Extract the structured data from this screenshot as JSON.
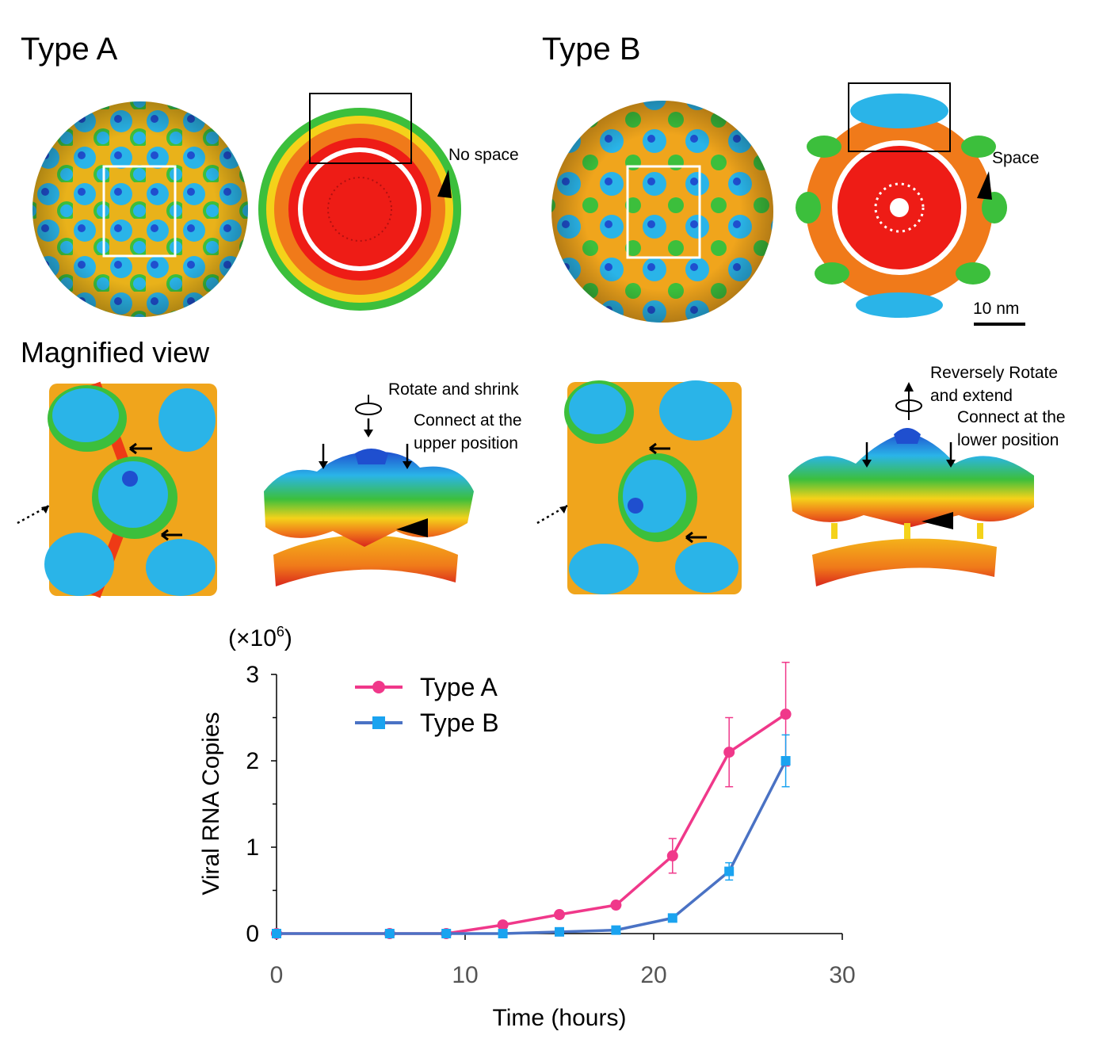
{
  "panels": {
    "type_a_title": "Type A",
    "type_b_title": "Type B",
    "magnified_title": "Magnified view",
    "no_space_label": "No space",
    "space_label": "Space",
    "scale_bar_label": "10 nm",
    "a_rotate_label": "Rotate and shrink",
    "a_connect_label": "Connect at the\nupper position",
    "b_rotate_label": "Reversely Rotate\nand extend",
    "b_connect_label": "Connect at the\nlower position"
  },
  "colors": {
    "type_a": "#f0388a",
    "type_b_marker": "#1aa3f0",
    "type_b_line": "#4a72c4",
    "shell_red": "#ee1c16",
    "shell_orange": "#f07a1a",
    "shell_yellow": "#f4d21a",
    "shell_green": "#3cbf3c",
    "shell_cyan": "#2ab4e8",
    "shell_blue": "#1f4fcf"
  },
  "chart_data": {
    "type": "line",
    "xlabel": "Time (hours)",
    "ylabel": "Viral RNA Copies",
    "y_multiplier_base": "(×10",
    "y_multiplier_exp": "6",
    "y_multiplier_close": ")",
    "xlim": [
      0,
      30
    ],
    "ylim": [
      0,
      3
    ],
    "xticks": [
      "0",
      "10",
      "20",
      "30"
    ],
    "yticks": [
      "0",
      "1",
      "2",
      "3"
    ],
    "legend_position": "top-left",
    "x": [
      0,
      6,
      9,
      12,
      15,
      18,
      21,
      24,
      27
    ],
    "series": [
      {
        "name": "Type A",
        "marker": "circle",
        "values": [
          0,
          0,
          0,
          0.1,
          0.22,
          0.33,
          0.9,
          2.1,
          2.54
        ],
        "error": [
          0,
          0,
          0,
          0,
          0,
          0,
          0.2,
          0.4,
          0.6
        ]
      },
      {
        "name": "Type B",
        "marker": "square",
        "values": [
          0,
          0,
          0,
          0,
          0.02,
          0.04,
          0.18,
          0.72,
          2.0
        ],
        "error": [
          0,
          0,
          0,
          0,
          0,
          0,
          0,
          0.1,
          0.3
        ]
      }
    ]
  }
}
